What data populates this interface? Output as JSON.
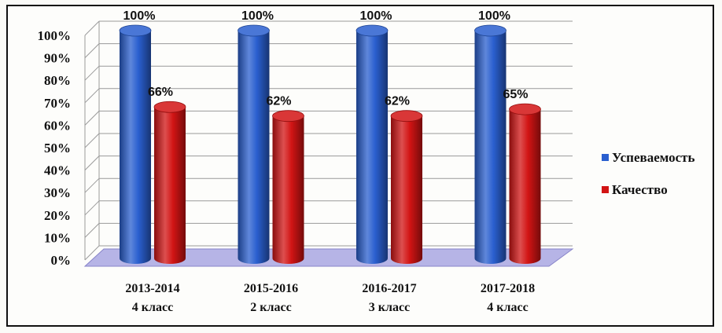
{
  "chart_data": {
    "type": "bar",
    "style": "3d-cylinder",
    "categories": [
      {
        "line1": "2013-2014",
        "line2": "4 класс"
      },
      {
        "line1": "2015-2016",
        "line2": "2 класс"
      },
      {
        "line1": "2016-2017",
        "line2": "3 класс"
      },
      {
        "line1": "2017-2018",
        "line2": "4 класс"
      }
    ],
    "series": [
      {
        "name": "Успеваемость",
        "color": "#2a5fcf",
        "values": [
          100,
          100,
          100,
          100
        ],
        "labels": [
          "100%",
          "100%",
          "100%",
          "100%"
        ]
      },
      {
        "name": "Качество",
        "color": "#d21414",
        "values": [
          66,
          62,
          62,
          65
        ],
        "labels": [
          "66%",
          "62%",
          "62%",
          "65%"
        ]
      }
    ],
    "y_ticks": [
      "0%",
      "10%",
      "20%",
      "30%",
      "40%",
      "50%",
      "60%",
      "70%",
      "80%",
      "90%",
      "100%"
    ],
    "ylim": [
      0,
      100
    ],
    "grid": true,
    "legend_position": "right",
    "floor_color": "#b6b4e6"
  }
}
